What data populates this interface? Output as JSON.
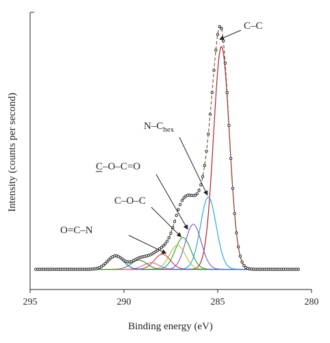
{
  "chart_data": {
    "type": "line",
    "xlabel": "Binding energy (eV)",
    "ylabel": "Intensity (counts per second)",
    "xlim": [
      295,
      280
    ],
    "x_reversed": true,
    "x_ticks": [
      "295",
      "290",
      "285",
      "280"
    ],
    "y_ticks_labeled": false,
    "ylim": [
      0,
      100
    ],
    "baseline": 1.2,
    "envelope_color": "#7b5a3a",
    "data_point_color": "#222222",
    "components": [
      {
        "assignment": "C–C",
        "center": 284.8,
        "height": 88.0,
        "width": 0.42,
        "color": "#b0202a"
      },
      {
        "assignment": "N–Chex",
        "center": 285.5,
        "height": 28.5,
        "width": 0.42,
        "color": "#2aa7df"
      },
      {
        "assignment": "",
        "center": 286.3,
        "height": 17.8,
        "width": 0.42,
        "color": "#7b61c9"
      },
      {
        "assignment": "C–O–C",
        "center": 286.85,
        "height": 12.5,
        "width": 0.42,
        "color": "#3c9b3c"
      },
      {
        "assignment": "",
        "center": 287.15,
        "height": 9.5,
        "width": 0.42,
        "color": "#b7c23a"
      },
      {
        "assignment": "",
        "center": 287.95,
        "height": 6.0,
        "width": 0.42,
        "color": "#d0404a"
      },
      {
        "assignment": "",
        "center": 288.55,
        "height": 2.6,
        "width": 0.42,
        "color": "#d86aa8"
      },
      {
        "assignment": "",
        "center": 289.2,
        "height": 3.6,
        "width": 0.42,
        "color": "#4c8a3a"
      },
      {
        "assignment": "",
        "center": 290.45,
        "height": 5.3,
        "width": 0.42,
        "color": "#2b66b3"
      }
    ],
    "annotations": [
      {
        "label": "C–C",
        "at_x": 284.9,
        "at_y": 92.0
      },
      {
        "label_main": "N–C",
        "label_sub": "hex",
        "at_x": 285.55,
        "at_y": 30.5
      },
      {
        "label": "C–O–C=O",
        "underline_first_letter": true,
        "at_x": 286.6,
        "at_y": 17.0
      },
      {
        "label": "C–O–C",
        "at_x": 286.95,
        "at_y": 14.0
      },
      {
        "label": "O=C–N",
        "at_x": 287.75,
        "at_y": 7.5
      }
    ]
  }
}
